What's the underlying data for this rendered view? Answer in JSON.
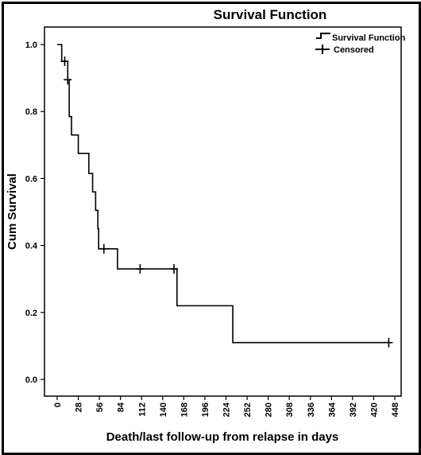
{
  "chart_data": {
    "type": "line",
    "title": "Survival Function",
    "xlabel": "Death/last follow-up from relapse in days",
    "ylabel": "Cum Survival",
    "xlim": [
      0,
      448
    ],
    "ylim": [
      0.0,
      1.0
    ],
    "x_ticks": [
      0,
      28,
      56,
      84,
      112,
      140,
      168,
      196,
      224,
      252,
      280,
      308,
      336,
      364,
      392,
      420,
      448
    ],
    "y_ticks": [
      0.0,
      0.2,
      0.4,
      0.6,
      0.8,
      1.0
    ],
    "y_tick_labels": [
      "0.0",
      "0.2",
      "0.4",
      "0.6",
      "0.8",
      "1.0"
    ],
    "legend": {
      "position": "top-right",
      "entries": [
        "Survival Function",
        "Censored"
      ]
    },
    "series": [
      {
        "name": "Survival Function",
        "steps": [
          {
            "x": 0,
            "y": 1.0
          },
          {
            "x": 6,
            "y": 0.95
          },
          {
            "x": 14,
            "y": 0.895
          },
          {
            "x": 16,
            "y": 0.785
          },
          {
            "x": 19,
            "y": 0.73
          },
          {
            "x": 28,
            "y": 0.675
          },
          {
            "x": 42,
            "y": 0.615
          },
          {
            "x": 47,
            "y": 0.56
          },
          {
            "x": 51,
            "y": 0.505
          },
          {
            "x": 54,
            "y": 0.45
          },
          {
            "x": 55,
            "y": 0.39
          },
          {
            "x": 80,
            "y": 0.33
          },
          {
            "x": 159,
            "y": 0.22
          },
          {
            "x": 233,
            "y": 0.11
          }
        ],
        "end_x": 440
      },
      {
        "name": "Censored",
        "points": [
          {
            "x": 10,
            "y": 0.95
          },
          {
            "x": 14,
            "y": 0.895
          },
          {
            "x": 62,
            "y": 0.39
          },
          {
            "x": 110,
            "y": 0.33
          },
          {
            "x": 155,
            "y": 0.33
          },
          {
            "x": 440,
            "y": 0.11
          }
        ]
      }
    ]
  }
}
